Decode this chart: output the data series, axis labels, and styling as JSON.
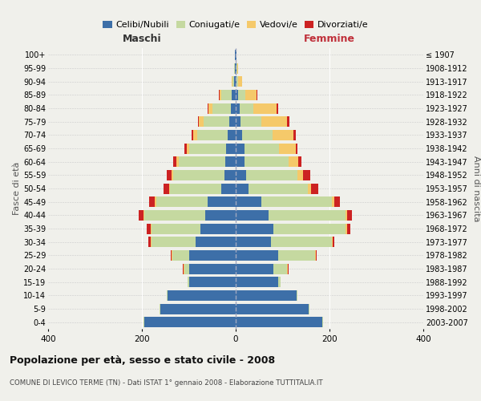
{
  "age_groups": [
    "0-4",
    "5-9",
    "10-14",
    "15-19",
    "20-24",
    "25-29",
    "30-34",
    "35-39",
    "40-44",
    "45-49",
    "50-54",
    "55-59",
    "60-64",
    "65-69",
    "70-74",
    "75-79",
    "80-84",
    "85-89",
    "90-94",
    "95-99",
    "100+"
  ],
  "birth_years": [
    "2003-2007",
    "1998-2002",
    "1993-1997",
    "1988-1992",
    "1983-1987",
    "1978-1982",
    "1973-1977",
    "1968-1972",
    "1963-1967",
    "1958-1962",
    "1953-1957",
    "1948-1952",
    "1943-1947",
    "1938-1942",
    "1933-1937",
    "1928-1932",
    "1923-1927",
    "1918-1922",
    "1913-1917",
    "1908-1912",
    "≤ 1907"
  ],
  "maschi": {
    "celibi": [
      195,
      160,
      145,
      100,
      100,
      100,
      85,
      75,
      65,
      60,
      30,
      24,
      22,
      20,
      17,
      13,
      10,
      8,
      3,
      2,
      1
    ],
    "coniugati": [
      2,
      2,
      2,
      2,
      10,
      35,
      95,
      105,
      130,
      110,
      110,
      110,
      100,
      80,
      65,
      55,
      40,
      22,
      4,
      1,
      0
    ],
    "vedovi": [
      0,
      0,
      0,
      0,
      1,
      1,
      1,
      1,
      1,
      2,
      2,
      3,
      4,
      5,
      8,
      10,
      8,
      5,
      2,
      0,
      0
    ],
    "divorziati": [
      0,
      0,
      0,
      0,
      1,
      2,
      5,
      8,
      10,
      12,
      12,
      10,
      8,
      5,
      4,
      3,
      2,
      1,
      0,
      0,
      0
    ]
  },
  "femmine": {
    "nubili": [
      185,
      155,
      130,
      90,
      80,
      90,
      75,
      80,
      70,
      55,
      28,
      22,
      18,
      18,
      13,
      10,
      8,
      5,
      2,
      2,
      1
    ],
    "coniugate": [
      2,
      2,
      2,
      5,
      30,
      80,
      130,
      155,
      165,
      150,
      125,
      110,
      95,
      75,
      65,
      45,
      30,
      15,
      3,
      1,
      0
    ],
    "vedove": [
      0,
      0,
      0,
      0,
      1,
      1,
      1,
      2,
      3,
      5,
      8,
      12,
      20,
      35,
      45,
      55,
      50,
      25,
      8,
      2,
      1
    ],
    "divorziate": [
      0,
      0,
      0,
      0,
      1,
      2,
      5,
      8,
      10,
      12,
      15,
      15,
      8,
      4,
      5,
      5,
      3,
      2,
      0,
      0,
      0
    ]
  },
  "colors": {
    "celibi": "#3d6fa8",
    "coniugati": "#c5d9a0",
    "vedovi": "#f5c96a",
    "divorziati": "#cc2222"
  },
  "title": "Popolazione per età, sesso e stato civile - 2008",
  "subtitle": "COMUNE DI LEVICO TERME (TN) - Dati ISTAT 1° gennaio 2008 - Elaborazione TUTTITALIA.IT",
  "ylabel_left": "Fasce di età",
  "ylabel_right": "Anni di nascita",
  "xlabel_left": "Maschi",
  "xlabel_right": "Femmine",
  "xlim": 400,
  "legend_labels": [
    "Celibi/Nubili",
    "Coniugati/e",
    "Vedovi/e",
    "Divorziati/e"
  ],
  "background_color": "#f0f0eb"
}
